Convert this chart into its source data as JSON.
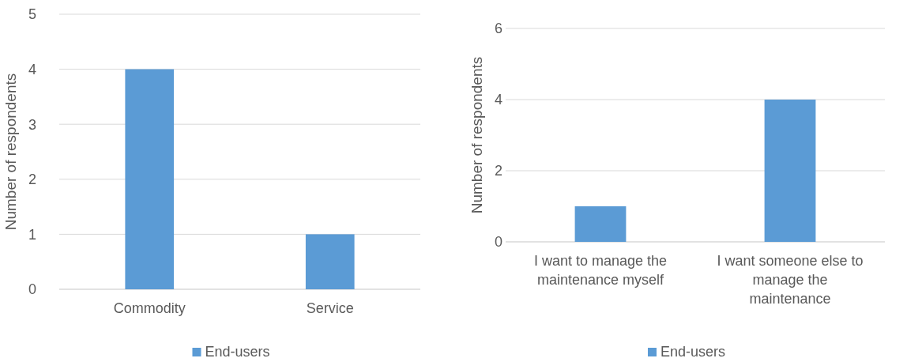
{
  "chart_data": [
    {
      "type": "bar",
      "categories": [
        "Commodity",
        "Service"
      ],
      "series": [
        {
          "name": "End-users",
          "color": "#5b9bd5",
          "values": [
            4,
            1
          ]
        }
      ],
      "ylabel": "Number of respondents",
      "ylim": [
        0,
        5
      ],
      "yticks": [
        0,
        1,
        2,
        3,
        4,
        5
      ],
      "grid": "y",
      "legend": "bottom"
    },
    {
      "type": "bar",
      "categories": [
        "I want to manage the maintenance myself",
        "I want someone else to manage the maintenance"
      ],
      "series": [
        {
          "name": "End-users",
          "color": "#5b9bd5",
          "values": [
            1,
            4
          ]
        }
      ],
      "ylabel": "Number of respondents",
      "ylim": [
        0,
        6
      ],
      "yticks": [
        0,
        2,
        4,
        6
      ],
      "grid": "y",
      "legend": "bottom"
    }
  ]
}
